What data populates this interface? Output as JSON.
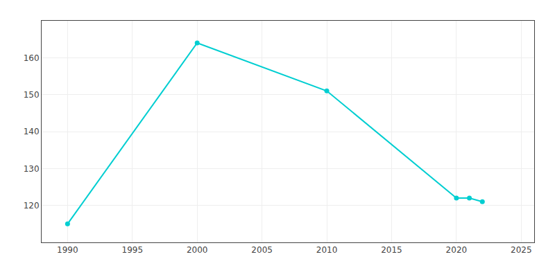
{
  "chart_data": {
    "type": "line",
    "x": [
      1990,
      2000,
      2010,
      2020,
      2021,
      2022
    ],
    "values": [
      115,
      164,
      151,
      122,
      122,
      121
    ],
    "color": "#00CED1",
    "marker": "circle",
    "xlim": [
      1988,
      2026
    ],
    "ylim": [
      110,
      170
    ],
    "xticks": [
      1990,
      1995,
      2000,
      2005,
      2010,
      2015,
      2020,
      2025
    ],
    "yticks": [
      120,
      130,
      140,
      150,
      160
    ],
    "grid": true
  }
}
